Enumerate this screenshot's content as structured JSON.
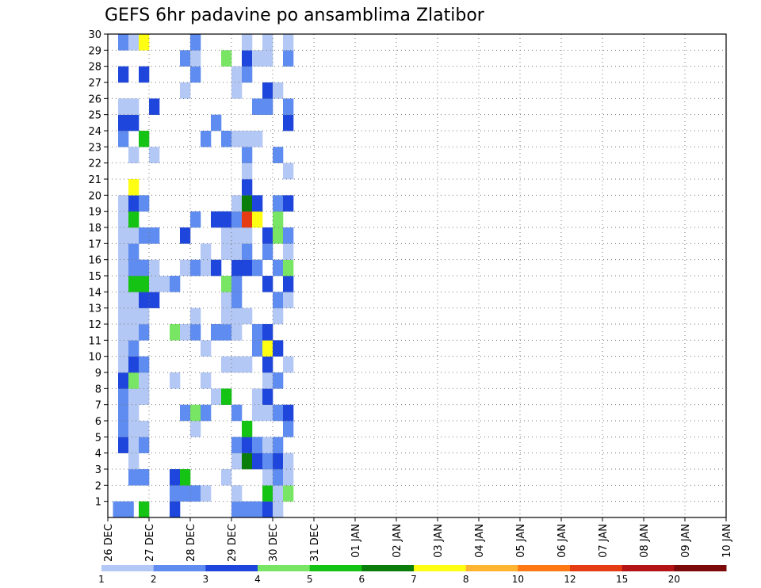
{
  "chart_data": {
    "type": "heatmap",
    "title": "GEFS 6hr padavine po ansamblima Zlatibor",
    "xlabel": "",
    "ylabel": "",
    "x_tick_labels": [
      "26 DEC",
      "27 DEC",
      "28 DEC",
      "29 DEC",
      "30 DEC",
      "31 DEC",
      "01 JAN",
      "02 JAN",
      "03 JAN",
      "04 JAN",
      "05 JAN",
      "06 JAN",
      "07 JAN",
      "08 JAN",
      "09 JAN",
      "10 JAN"
    ],
    "y_tick_labels": [
      "1",
      "2",
      "3",
      "4",
      "5",
      "6",
      "7",
      "8",
      "9",
      "10",
      "11",
      "12",
      "13",
      "14",
      "15",
      "16",
      "17",
      "18",
      "19",
      "20",
      "21",
      "22",
      "23",
      "24",
      "25",
      "26",
      "27",
      "28",
      "29",
      "30"
    ],
    "x_range": [
      0,
      60
    ],
    "y_range": [
      0,
      30
    ],
    "steps_per_day": 4,
    "grid": true,
    "legend": {
      "placement": "bottom",
      "labels": [
        "1",
        "2",
        "3",
        "4",
        "5",
        "6",
        "7",
        "8",
        "10",
        "12",
        "15",
        "20"
      ],
      "colors": [
        "#b4c8f5",
        "#5f8cf0",
        "#1e46dc",
        "#78e664",
        "#14c314",
        "#0a7d0a",
        "#ffff14",
        "#ffb432",
        "#ff7814",
        "#e63c14",
        "#b41414",
        "#7d0a0a"
      ]
    },
    "levels": [
      "1-2",
      "2-3",
      "3-4",
      "4-5",
      "5-6",
      "6-7",
      "7-8",
      "8-10",
      "10-12",
      "12-15",
      "15-20",
      "20+"
    ],
    "cells": [
      [
        0.5,
        0,
        1
      ],
      [
        1.5,
        0,
        1
      ],
      [
        6,
        1,
        1
      ],
      [
        6,
        2,
        2
      ],
      [
        7,
        1,
        1
      ],
      [
        7,
        2,
        4
      ],
      [
        8,
        1,
        1
      ],
      [
        9,
        1,
        0
      ],
      [
        1,
        4,
        2
      ],
      [
        1,
        5,
        1
      ],
      [
        1,
        6,
        1
      ],
      [
        1,
        7,
        1
      ],
      [
        1,
        8,
        2
      ],
      [
        1,
        9,
        0
      ],
      [
        1,
        10,
        0
      ],
      [
        1,
        11,
        0
      ],
      [
        1,
        12,
        0
      ],
      [
        1,
        13,
        0
      ],
      [
        1,
        14,
        0
      ],
      [
        1,
        15,
        0
      ],
      [
        1,
        16,
        0
      ],
      [
        1,
        17,
        0
      ],
      [
        1,
        18,
        0
      ],
      [
        1,
        19,
        0
      ],
      [
        1,
        23,
        1
      ],
      [
        1,
        24,
        2
      ],
      [
        1,
        25,
        0
      ],
      [
        1,
        27,
        2
      ],
      [
        1,
        29,
        1
      ],
      [
        2,
        2,
        1
      ],
      [
        2,
        3,
        0
      ],
      [
        2,
        4,
        0
      ],
      [
        2,
        5,
        0
      ],
      [
        2,
        6,
        0
      ],
      [
        2,
        7,
        0
      ],
      [
        2,
        8,
        3
      ],
      [
        2,
        9,
        2
      ],
      [
        2,
        10,
        1
      ],
      [
        2,
        11,
        0
      ],
      [
        2,
        12,
        0
      ],
      [
        2,
        13,
        0
      ],
      [
        2,
        14,
        4
      ],
      [
        2,
        15,
        1
      ],
      [
        2,
        16,
        1
      ],
      [
        2,
        17,
        0
      ],
      [
        2,
        18,
        4
      ],
      [
        2,
        19,
        2
      ],
      [
        2,
        20,
        6
      ],
      [
        2,
        22,
        0
      ],
      [
        2,
        24,
        2
      ],
      [
        2,
        25,
        0
      ],
      [
        2,
        29,
        0
      ],
      [
        3,
        0,
        4
      ],
      [
        3,
        2,
        1
      ],
      [
        3,
        4,
        1
      ],
      [
        3,
        5,
        0
      ],
      [
        3,
        7,
        0
      ],
      [
        3,
        8,
        0
      ],
      [
        3,
        9,
        1
      ],
      [
        3,
        11,
        1
      ],
      [
        3,
        12,
        0
      ],
      [
        3,
        13,
        2
      ],
      [
        3,
        14,
        4
      ],
      [
        3,
        15,
        1
      ],
      [
        3,
        17,
        1
      ],
      [
        3,
        19,
        1
      ],
      [
        3,
        23,
        4
      ],
      [
        3,
        27,
        2
      ],
      [
        3,
        29,
        6
      ],
      [
        4,
        13,
        2
      ],
      [
        4,
        14,
        0
      ],
      [
        4,
        15,
        0
      ],
      [
        4,
        17,
        1
      ],
      [
        4,
        22,
        0
      ],
      [
        4,
        25,
        2
      ],
      [
        5,
        14,
        0
      ],
      [
        6,
        0,
        2
      ],
      [
        6,
        8,
        0
      ],
      [
        6,
        11,
        3
      ],
      [
        6,
        14,
        1
      ],
      [
        7,
        6,
        1
      ],
      [
        7,
        11,
        0
      ],
      [
        7,
        15,
        0
      ],
      [
        7,
        17,
        2
      ],
      [
        7,
        26,
        0
      ],
      [
        7,
        28,
        1
      ],
      [
        8,
        5,
        0
      ],
      [
        8,
        6,
        3
      ],
      [
        8,
        11,
        1
      ],
      [
        8,
        12,
        0
      ],
      [
        8,
        15,
        1
      ],
      [
        8,
        18,
        1
      ],
      [
        8,
        27,
        1
      ],
      [
        8,
        28,
        0
      ],
      [
        8,
        29,
        1
      ],
      [
        9,
        6,
        1
      ],
      [
        9,
        8,
        0
      ],
      [
        9,
        10,
        0
      ],
      [
        9,
        15,
        0
      ],
      [
        9,
        16,
        0
      ],
      [
        9,
        23,
        1
      ],
      [
        10,
        7,
        0
      ],
      [
        10,
        11,
        1
      ],
      [
        10,
        15,
        2
      ],
      [
        10,
        18,
        2
      ],
      [
        10,
        24,
        1
      ],
      [
        11,
        2,
        0
      ],
      [
        11,
        7,
        4
      ],
      [
        11,
        9,
        0
      ],
      [
        11,
        11,
        1
      ],
      [
        11,
        12,
        0
      ],
      [
        11,
        13,
        0
      ],
      [
        11,
        14,
        3
      ],
      [
        11,
        16,
        0
      ],
      [
        11,
        17,
        0
      ],
      [
        11,
        18,
        2
      ],
      [
        11,
        23,
        1
      ],
      [
        11,
        28,
        3
      ],
      [
        12,
        0,
        1
      ],
      [
        12,
        1,
        0
      ],
      [
        12,
        3,
        0
      ],
      [
        12,
        4,
        1
      ],
      [
        12,
        6,
        1
      ],
      [
        12,
        9,
        0
      ],
      [
        12,
        11,
        0
      ],
      [
        12,
        12,
        0
      ],
      [
        12,
        13,
        1
      ],
      [
        12,
        14,
        1
      ],
      [
        12,
        15,
        2
      ],
      [
        12,
        16,
        0
      ],
      [
        12,
        17,
        0
      ],
      [
        12,
        18,
        1
      ],
      [
        12,
        19,
        0
      ],
      [
        12,
        23,
        0
      ],
      [
        12,
        26,
        0
      ],
      [
        12,
        27,
        0
      ],
      [
        13,
        0,
        1
      ],
      [
        13,
        3,
        5
      ],
      [
        13,
        4,
        2
      ],
      [
        13,
        5,
        4
      ],
      [
        13,
        9,
        0
      ],
      [
        13,
        12,
        0
      ],
      [
        13,
        15,
        2
      ],
      [
        13,
        16,
        1
      ],
      [
        13,
        17,
        0
      ],
      [
        13,
        18,
        9
      ],
      [
        13,
        19,
        5
      ],
      [
        13,
        20,
        2
      ],
      [
        13,
        21,
        0
      ],
      [
        13,
        22,
        1
      ],
      [
        13,
        23,
        0
      ],
      [
        13,
        27,
        1
      ],
      [
        13,
        28,
        2
      ],
      [
        13,
        29,
        0
      ],
      [
        14,
        0,
        1
      ],
      [
        14,
        3,
        2
      ],
      [
        14,
        4,
        1
      ],
      [
        14,
        6,
        0
      ],
      [
        14,
        7,
        0
      ],
      [
        14,
        10,
        1
      ],
      [
        14,
        11,
        1
      ],
      [
        14,
        15,
        1
      ],
      [
        14,
        18,
        6
      ],
      [
        14,
        19,
        2
      ],
      [
        14,
        23,
        0
      ],
      [
        14,
        25,
        1
      ],
      [
        14,
        28,
        0
      ],
      [
        15,
        0,
        2
      ],
      [
        15,
        1,
        4
      ],
      [
        15,
        2,
        0
      ],
      [
        15,
        3,
        1
      ],
      [
        15,
        4,
        0
      ],
      [
        15,
        6,
        0
      ],
      [
        15,
        7,
        2
      ],
      [
        15,
        8,
        0
      ],
      [
        15,
        9,
        2
      ],
      [
        15,
        10,
        6
      ],
      [
        15,
        11,
        2
      ],
      [
        15,
        14,
        2
      ],
      [
        15,
        16,
        1
      ],
      [
        15,
        17,
        2
      ],
      [
        15,
        25,
        1
      ],
      [
        15,
        26,
        2
      ],
      [
        15,
        28,
        0
      ],
      [
        15,
        29,
        0
      ],
      [
        16,
        0,
        0
      ],
      [
        16,
        1,
        0
      ],
      [
        16,
        2,
        1
      ],
      [
        16,
        3,
        2
      ],
      [
        16,
        4,
        1
      ],
      [
        16,
        6,
        1
      ],
      [
        16,
        8,
        1
      ],
      [
        16,
        10,
        2
      ],
      [
        16,
        12,
        0
      ],
      [
        16,
        13,
        1
      ],
      [
        16,
        15,
        1
      ],
      [
        16,
        17,
        3
      ],
      [
        16,
        18,
        3
      ],
      [
        16,
        19,
        1
      ],
      [
        16,
        22,
        1
      ],
      [
        16,
        26,
        0
      ],
      [
        17,
        1,
        3
      ],
      [
        17,
        2,
        0
      ],
      [
        17,
        3,
        0
      ],
      [
        17,
        5,
        1
      ],
      [
        17,
        6,
        2
      ],
      [
        17,
        9,
        0
      ],
      [
        17,
        13,
        0
      ],
      [
        17,
        14,
        2
      ],
      [
        17,
        15,
        3
      ],
      [
        17,
        16,
        0
      ],
      [
        17,
        17,
        1
      ],
      [
        17,
        19,
        2
      ],
      [
        17,
        21,
        0
      ],
      [
        17,
        24,
        2
      ],
      [
        17,
        25,
        1
      ],
      [
        17,
        28,
        1
      ],
      [
        17,
        29,
        0
      ]
    ]
  }
}
